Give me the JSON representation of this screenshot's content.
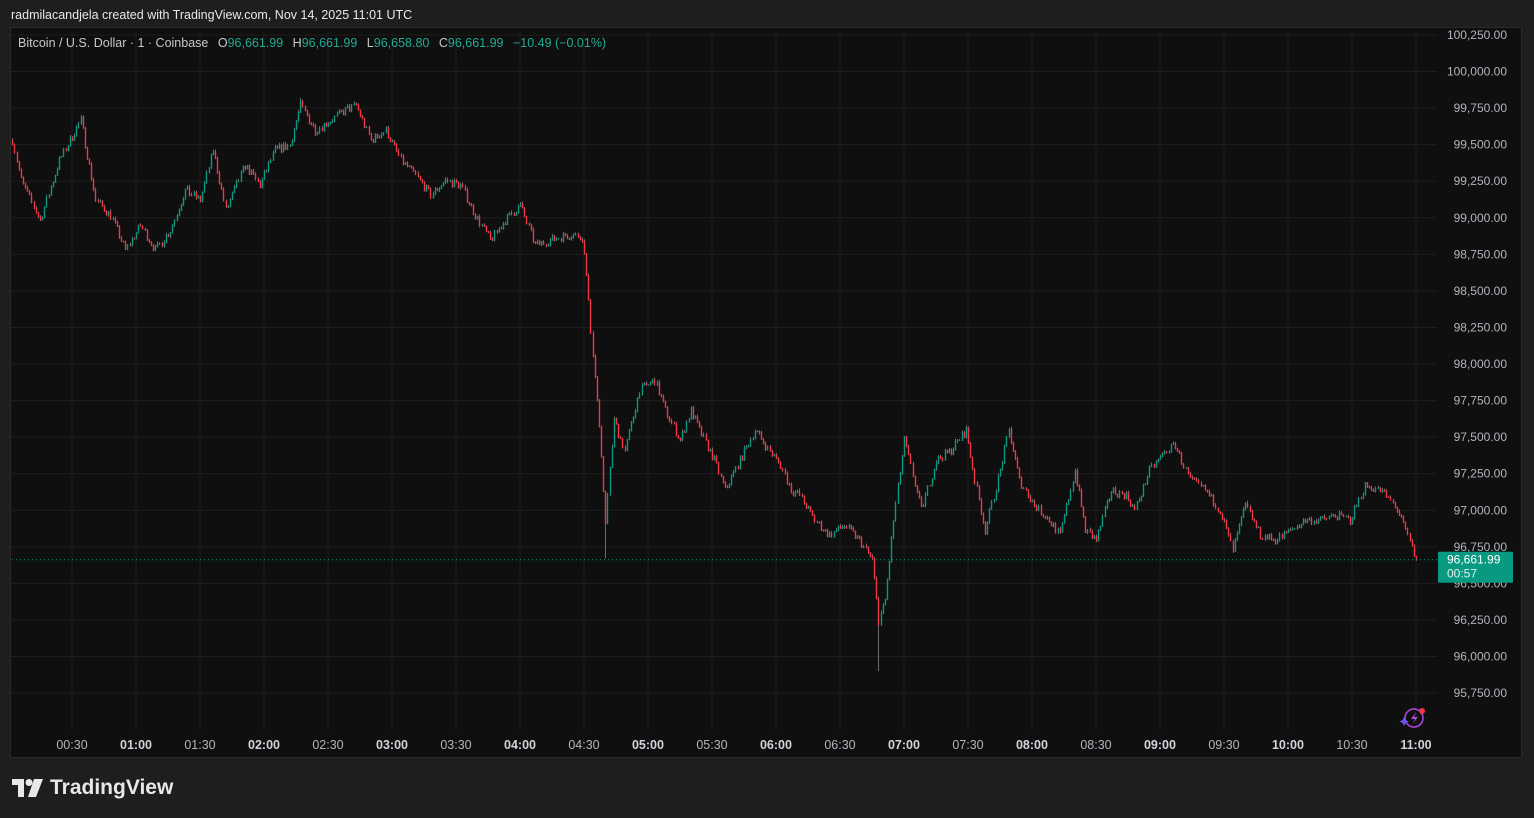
{
  "caption": "radmilacandjela created with TradingView.com, Nov 14, 2025 11:01 UTC",
  "legend": {
    "symbol": "Bitcoin / U.S. Dollar · 1 · Coinbase",
    "o_label": "O",
    "o": "96,661.99",
    "h_label": "H",
    "h": "96,661.99",
    "l_label": "L",
    "l": "96,658.80",
    "c_label": "C",
    "c": "96,661.99",
    "change": "−10.49 (−0.01%)"
  },
  "last_price": {
    "value": "96,661.99",
    "countdown": "00:57"
  },
  "footer": {
    "brand": "TradingView"
  },
  "icons": {
    "logo": "tradingview-logo-icon",
    "assistant": "sparkle-lightning-icon"
  },
  "colors": {
    "up": "#089981",
    "down": "#f23645",
    "background": "#0f0f0f",
    "last_price": "#089981"
  },
  "chart_data": {
    "type": "candlestick",
    "interval": "1 minute",
    "ylim": [
      95650,
      100300
    ],
    "grid": true,
    "y_ticks": [
      "100,250.00",
      "100,000.00",
      "99,750.00",
      "99,500.00",
      "99,250.00",
      "99,000.00",
      "98,750.00",
      "98,500.00",
      "98,250.00",
      "98,000.00",
      "97,750.00",
      "97,500.00",
      "97,250.00",
      "97,000.00",
      "96,750.00",
      "96,500.00",
      "96,250.00",
      "96,000.00",
      "95,750.00"
    ],
    "x_ticks": [
      {
        "label": "00:30",
        "bold": false
      },
      {
        "label": "01:00",
        "bold": true
      },
      {
        "label": "01:30",
        "bold": false
      },
      {
        "label": "02:00",
        "bold": true
      },
      {
        "label": "02:30",
        "bold": false
      },
      {
        "label": "03:00",
        "bold": true
      },
      {
        "label": "03:30",
        "bold": false
      },
      {
        "label": "04:00",
        "bold": true
      },
      {
        "label": "04:30",
        "bold": false
      },
      {
        "label": "05:00",
        "bold": true
      },
      {
        "label": "05:30",
        "bold": false
      },
      {
        "label": "06:00",
        "bold": true
      },
      {
        "label": "06:30",
        "bold": false
      },
      {
        "label": "07:00",
        "bold": true
      },
      {
        "label": "07:30",
        "bold": false
      },
      {
        "label": "08:00",
        "bold": true
      },
      {
        "label": "08:30",
        "bold": false
      },
      {
        "label": "09:00",
        "bold": true
      },
      {
        "label": "09:30",
        "bold": false
      },
      {
        "label": "10:00",
        "bold": true
      },
      {
        "label": "10:30",
        "bold": false
      },
      {
        "label": "11:00",
        "bold": true
      }
    ],
    "approx_path": [
      [
        "00:02",
        99532
      ],
      [
        "00:06",
        99258
      ],
      [
        "00:15",
        98985
      ],
      [
        "00:24",
        99395
      ],
      [
        "00:34",
        99669
      ],
      [
        "00:41",
        99122
      ],
      [
        "00:48",
        99019
      ],
      [
        "00:55",
        98780
      ],
      [
        "01:02",
        98951
      ],
      [
        "01:09",
        98780
      ],
      [
        "01:16",
        98917
      ],
      [
        "01:23",
        99190
      ],
      [
        "01:30",
        99122
      ],
      [
        "01:36",
        99464
      ],
      [
        "01:42",
        99053
      ],
      [
        "01:51",
        99361
      ],
      [
        "01:58",
        99224
      ],
      [
        "02:05",
        99464
      ],
      [
        "02:12",
        99498
      ],
      [
        "02:17",
        99771
      ],
      [
        "02:24",
        99600
      ],
      [
        "02:31",
        99669
      ],
      [
        "02:38",
        99737
      ],
      [
        "02:43",
        99771
      ],
      [
        "02:50",
        99532
      ],
      [
        "02:57",
        99600
      ],
      [
        "03:04",
        99395
      ],
      [
        "03:11",
        99293
      ],
      [
        "03:18",
        99156
      ],
      [
        "03:25",
        99258
      ],
      [
        "03:32",
        99224
      ],
      [
        "03:39",
        99019
      ],
      [
        "03:46",
        98848
      ],
      [
        "03:53",
        98985
      ],
      [
        "04:00",
        99088
      ],
      [
        "04:07",
        98814
      ],
      [
        "04:14",
        98848
      ],
      [
        "04:21",
        98882
      ],
      [
        "04:28",
        98882
      ],
      [
        "04:30",
        98780
      ],
      [
        "04:33",
        98233
      ],
      [
        "04:36",
        97754
      ],
      [
        "04:40",
        96934
      ],
      [
        "04:44",
        97617
      ],
      [
        "04:49",
        97412
      ],
      [
        "04:56",
        97823
      ],
      [
        "05:03",
        97891
      ],
      [
        "05:08",
        97686
      ],
      [
        "05:15",
        97481
      ],
      [
        "05:20",
        97686
      ],
      [
        "05:24",
        97549
      ],
      [
        "05:31",
        97344
      ],
      [
        "05:36",
        97139
      ],
      [
        "05:43",
        97344
      ],
      [
        "05:50",
        97549
      ],
      [
        "05:55",
        97446
      ],
      [
        "06:02",
        97310
      ],
      [
        "06:07",
        97139
      ],
      [
        "06:11",
        97105
      ],
      [
        "06:18",
        96934
      ],
      [
        "06:25",
        96831
      ],
      [
        "06:32",
        96899
      ],
      [
        "06:39",
        96797
      ],
      [
        "06:45",
        96660
      ],
      [
        "06:48",
        96250
      ],
      [
        "06:51",
        96387
      ],
      [
        "06:55",
        96934
      ],
      [
        "07:00",
        97481
      ],
      [
        "07:08",
        97002
      ],
      [
        "07:15",
        97344
      ],
      [
        "07:22",
        97412
      ],
      [
        "07:29",
        97549
      ],
      [
        "07:33",
        97207
      ],
      [
        "07:38",
        96865
      ],
      [
        "07:45",
        97275
      ],
      [
        "07:49",
        97549
      ],
      [
        "07:54",
        97207
      ],
      [
        "08:01",
        97036
      ],
      [
        "08:08",
        96934
      ],
      [
        "08:13",
        96831
      ],
      [
        "08:20",
        97275
      ],
      [
        "08:25",
        96865
      ],
      [
        "08:30",
        96797
      ],
      [
        "08:37",
        97139
      ],
      [
        "08:44",
        97105
      ],
      [
        "08:48",
        97002
      ],
      [
        "08:55",
        97275
      ],
      [
        "09:03",
        97412
      ],
      [
        "09:07",
        97446
      ],
      [
        "09:14",
        97207
      ],
      [
        "09:21",
        97139
      ],
      [
        "09:28",
        97002
      ],
      [
        "09:34",
        96728
      ],
      [
        "09:40",
        97036
      ],
      [
        "09:47",
        96831
      ],
      [
        "09:54",
        96797
      ],
      [
        "10:01",
        96865
      ],
      [
        "10:08",
        96934
      ],
      [
        "10:15",
        96934
      ],
      [
        "10:22",
        96968
      ],
      [
        "10:29",
        96934
      ],
      [
        "10:36",
        97173
      ],
      [
        "10:43",
        97139
      ],
      [
        "10:50",
        97036
      ],
      [
        "10:55",
        96865
      ],
      [
        "11:00",
        96662
      ]
    ],
    "extremes": {
      "low": 95900,
      "high": 99820
    },
    "last_value": 96661.99
  }
}
